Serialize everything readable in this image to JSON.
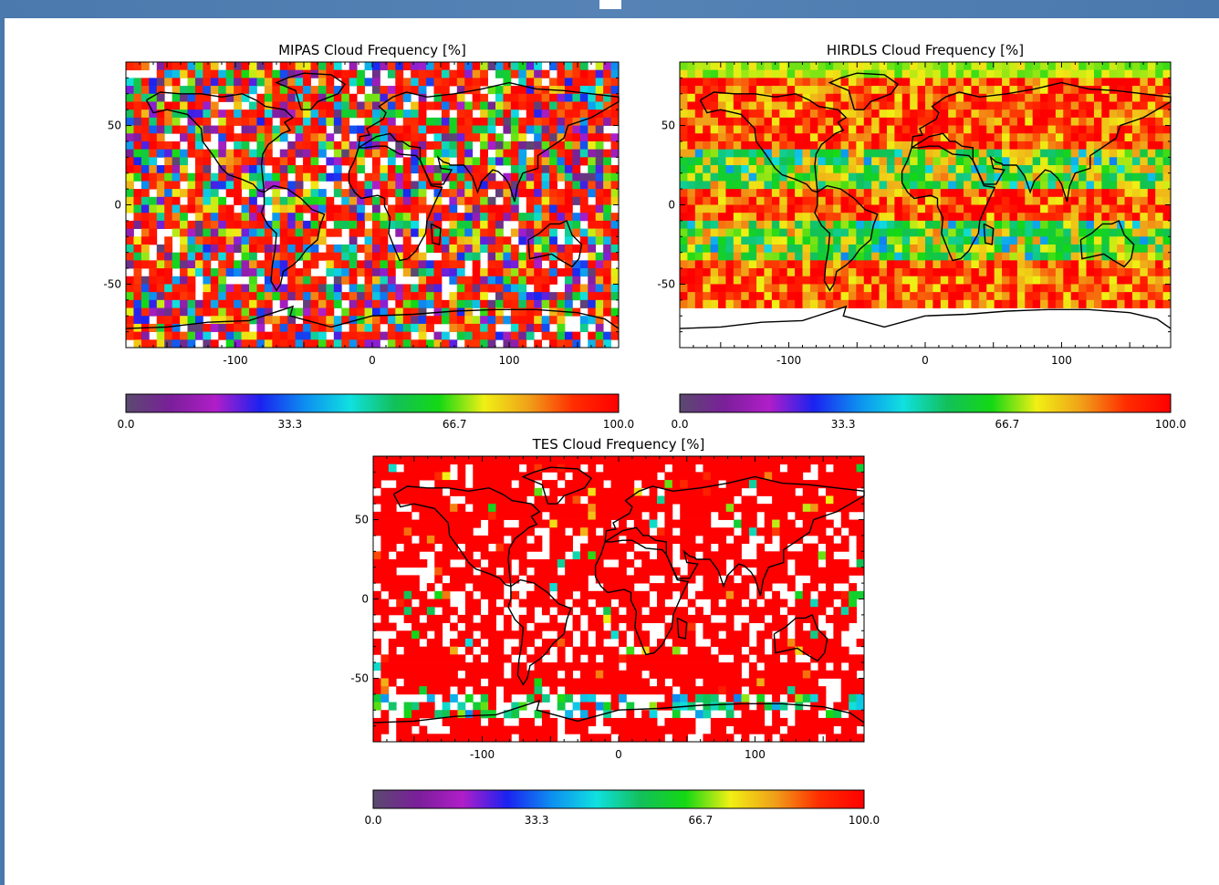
{
  "colors": {
    "window_frame": "#4a78ad",
    "content_bg": "#ffffff",
    "colormap": [
      "#5a4a6e",
      "#7a1f9a",
      "#b01ec8",
      "#1b22f0",
      "#0d8ff0",
      "#10e0e0",
      "#12c05a",
      "#14d814",
      "#f0f014",
      "#f0a019",
      "#ff2d00",
      "#ff0000"
    ]
  },
  "chart_data": [
    {
      "type": "heatmap",
      "id": "mipas",
      "title": "MIPAS Cloud Frequency [%]",
      "xlim": [
        -180,
        180
      ],
      "ylim": [
        -90,
        90
      ],
      "xticks": [
        "-100",
        "0",
        "100"
      ],
      "xtick_values": [
        -100,
        0,
        100
      ],
      "yticks": [
        "50",
        "0",
        "-50"
      ],
      "ytick_values": [
        50,
        0,
        -50
      ],
      "colorbar": {
        "range": [
          0.0,
          100.0
        ],
        "labels": [
          "0.0",
          "33.3",
          "66.7",
          "100.0"
        ]
      },
      "pattern": "mixed frequencies, widely scattered, white cells where no data"
    },
    {
      "type": "heatmap",
      "id": "hirdls",
      "title": "HIRDLS Cloud Frequency [%]",
      "xlim": [
        -180,
        180
      ],
      "ylim": [
        -90,
        90
      ],
      "xticks": [
        "-100",
        "0",
        "100"
      ],
      "xtick_values": [
        -100,
        0,
        100
      ],
      "yticks": [
        "50",
        "0",
        "-50"
      ],
      "ytick_values": [
        50,
        0,
        -50
      ],
      "colorbar": {
        "range": [
          0.0,
          100.0
        ],
        "labels": [
          "0.0",
          "33.3",
          "66.7",
          "100.0"
        ]
      },
      "pattern": "mostly 80-100% between 65S and 80N, lower values in subtropical bands, no data south of 65S"
    },
    {
      "type": "heatmap",
      "id": "tes",
      "title": "TES Cloud Frequency [%]",
      "xlim": [
        -180,
        180
      ],
      "ylim": [
        -90,
        90
      ],
      "xticks": [
        "-100",
        "0",
        "100"
      ],
      "xtick_values": [
        -100,
        0,
        100
      ],
      "yticks": [
        "50",
        "0",
        "-50"
      ],
      "ytick_values": [
        50,
        0,
        -50
      ],
      "colorbar": {
        "range": [
          0.0,
          100.0
        ],
        "labels": [
          "0.0",
          "33.3",
          "66.7",
          "100.0"
        ]
      },
      "pattern": "predominantly 100%, many white no-data cells in tropics and southern oceans, low values over Antarctica"
    }
  ]
}
